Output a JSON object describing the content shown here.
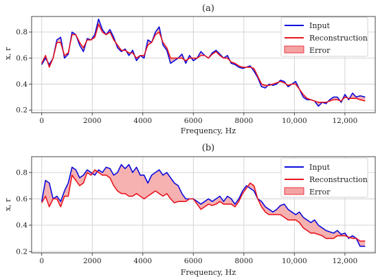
{
  "chart_data": [
    {
      "type": "line",
      "title": "(a)",
      "xlabel": "Frequency, Hz",
      "ylabel": "x, r",
      "xlim": [
        -400,
        13200
      ],
      "ylim": [
        0.18,
        0.92
      ],
      "xticks": [
        0,
        2000,
        4000,
        6000,
        8000,
        10000,
        12000
      ],
      "xtick_labels": [
        "0",
        "2000",
        "4000",
        "6000",
        "8000",
        "10,000",
        "12,000"
      ],
      "yticks": [
        0.2,
        0.4,
        0.6,
        0.8
      ],
      "ytick_labels": [
        "0.2",
        "0.4",
        "0.6",
        "0.8"
      ],
      "grid": true,
      "legend_position": "top-right",
      "legend": [
        "Input",
        "Reconstruction",
        "Error"
      ],
      "colors": {
        "input": "#0a0adc",
        "reconstruction": "#e8141e",
        "error_fill": "#f4a3a3"
      },
      "x": [
        0,
        150,
        300,
        450,
        600,
        750,
        900,
        1050,
        1200,
        1350,
        1500,
        1650,
        1800,
        1950,
        2100,
        2250,
        2400,
        2550,
        2700,
        2850,
        3000,
        3150,
        3300,
        3450,
        3600,
        3750,
        3900,
        4050,
        4200,
        4350,
        4500,
        4650,
        4800,
        4950,
        5100,
        5250,
        5400,
        5550,
        5700,
        5850,
        6000,
        6150,
        6300,
        6450,
        6600,
        6750,
        6900,
        7050,
        7200,
        7350,
        7500,
        7650,
        7800,
        7950,
        8100,
        8250,
        8400,
        8550,
        8700,
        8850,
        9000,
        9150,
        9300,
        9450,
        9600,
        9750,
        9900,
        10050,
        10200,
        10350,
        10500,
        10650,
        10800,
        10950,
        11100,
        11250,
        11400,
        11550,
        11700,
        11850,
        12000,
        12150,
        12300,
        12450,
        12600,
        12800
      ],
      "series": [
        {
          "name": "Input",
          "values": [
            0.55,
            0.6,
            0.55,
            0.6,
            0.74,
            0.76,
            0.6,
            0.63,
            0.8,
            0.78,
            0.7,
            0.65,
            0.75,
            0.74,
            0.78,
            0.9,
            0.82,
            0.78,
            0.82,
            0.76,
            0.68,
            0.65,
            0.67,
            0.62,
            0.66,
            0.58,
            0.62,
            0.6,
            0.74,
            0.72,
            0.8,
            0.84,
            0.7,
            0.66,
            0.56,
            0.58,
            0.6,
            0.63,
            0.56,
            0.62,
            0.58,
            0.6,
            0.65,
            0.62,
            0.6,
            0.64,
            0.66,
            0.63,
            0.6,
            0.62,
            0.56,
            0.55,
            0.53,
            0.52,
            0.53,
            0.54,
            0.5,
            0.45,
            0.38,
            0.37,
            0.4,
            0.39,
            0.4,
            0.43,
            0.42,
            0.38,
            0.4,
            0.42,
            0.36,
            0.3,
            0.28,
            0.28,
            0.27,
            0.23,
            0.26,
            0.25,
            0.28,
            0.3,
            0.3,
            0.26,
            0.32,
            0.28,
            0.33,
            0.3,
            0.31,
            0.3
          ]
        },
        {
          "name": "Reconstruction",
          "values": [
            0.56,
            0.62,
            0.53,
            0.6,
            0.72,
            0.72,
            0.62,
            0.64,
            0.78,
            0.78,
            0.72,
            0.68,
            0.74,
            0.74,
            0.76,
            0.86,
            0.8,
            0.78,
            0.8,
            0.74,
            0.7,
            0.66,
            0.66,
            0.64,
            0.64,
            0.6,
            0.62,
            0.62,
            0.7,
            0.72,
            0.78,
            0.8,
            0.72,
            0.68,
            0.6,
            0.6,
            0.6,
            0.6,
            0.58,
            0.6,
            0.6,
            0.6,
            0.62,
            0.62,
            0.6,
            0.63,
            0.65,
            0.62,
            0.6,
            0.6,
            0.57,
            0.56,
            0.54,
            0.53,
            0.53,
            0.53,
            0.52,
            0.46,
            0.4,
            0.39,
            0.39,
            0.4,
            0.41,
            0.42,
            0.41,
            0.39,
            0.4,
            0.4,
            0.36,
            0.32,
            0.29,
            0.28,
            0.27,
            0.26,
            0.26,
            0.26,
            0.27,
            0.28,
            0.28,
            0.27,
            0.3,
            0.29,
            0.29,
            0.29,
            0.28,
            0.27
          ]
        }
      ]
    },
    {
      "type": "line",
      "title": "(b)",
      "xlabel": "Frequency, Hz",
      "ylabel": "x, r",
      "xlim": [
        -400,
        13200
      ],
      "ylim": [
        0.19,
        0.92
      ],
      "xticks": [
        0,
        2000,
        4000,
        6000,
        8000,
        10000,
        12000
      ],
      "xtick_labels": [
        "0",
        "2000",
        "4000",
        "6000",
        "8000",
        "10,000",
        "12,000"
      ],
      "yticks": [
        0.2,
        0.4,
        0.6,
        0.8
      ],
      "ytick_labels": [
        "0.2",
        "0.4",
        "0.6",
        "0.8"
      ],
      "grid": true,
      "legend_position": "top-right",
      "legend": [
        "Input",
        "Reconstruction",
        "Error"
      ],
      "colors": {
        "input": "#0a0adc",
        "reconstruction": "#e8141e",
        "error_fill": "#f4a3a3"
      },
      "x": [
        0,
        150,
        300,
        450,
        600,
        750,
        900,
        1050,
        1200,
        1350,
        1500,
        1650,
        1800,
        1950,
        2100,
        2250,
        2400,
        2550,
        2700,
        2850,
        3000,
        3150,
        3300,
        3450,
        3600,
        3750,
        3900,
        4050,
        4200,
        4350,
        4500,
        4650,
        4800,
        4950,
        5100,
        5250,
        5400,
        5550,
        5700,
        5850,
        6000,
        6150,
        6300,
        6450,
        6600,
        6750,
        6900,
        7050,
        7200,
        7350,
        7500,
        7650,
        7800,
        7950,
        8100,
        8250,
        8400,
        8550,
        8700,
        8850,
        9000,
        9150,
        9300,
        9450,
        9600,
        9750,
        9900,
        10050,
        10200,
        10350,
        10500,
        10650,
        10800,
        10950,
        11100,
        11250,
        11400,
        11550,
        11700,
        11850,
        12000,
        12150,
        12300,
        12450,
        12600,
        12800
      ],
      "series": [
        {
          "name": "Input",
          "values": [
            0.58,
            0.74,
            0.72,
            0.6,
            0.62,
            0.58,
            0.66,
            0.72,
            0.84,
            0.82,
            0.76,
            0.78,
            0.82,
            0.8,
            0.78,
            0.82,
            0.8,
            0.84,
            0.83,
            0.78,
            0.8,
            0.86,
            0.83,
            0.86,
            0.8,
            0.84,
            0.78,
            0.78,
            0.72,
            0.78,
            0.8,
            0.82,
            0.78,
            0.8,
            0.76,
            0.72,
            0.7,
            0.64,
            0.6,
            0.6,
            0.6,
            0.58,
            0.56,
            0.58,
            0.6,
            0.58,
            0.6,
            0.62,
            0.58,
            0.62,
            0.6,
            0.56,
            0.6,
            0.66,
            0.7,
            0.68,
            0.66,
            0.6,
            0.58,
            0.54,
            0.52,
            0.5,
            0.52,
            0.55,
            0.56,
            0.52,
            0.5,
            0.48,
            0.5,
            0.46,
            0.44,
            0.42,
            0.44,
            0.4,
            0.38,
            0.36,
            0.35,
            0.34,
            0.36,
            0.33,
            0.34,
            0.3,
            0.32,
            0.3,
            0.24,
            0.24
          ]
        },
        {
          "name": "Reconstruction",
          "values": [
            0.57,
            0.62,
            0.54,
            0.6,
            0.6,
            0.54,
            0.62,
            0.62,
            0.78,
            0.74,
            0.7,
            0.72,
            0.8,
            0.78,
            0.82,
            0.8,
            0.78,
            0.78,
            0.76,
            0.7,
            0.66,
            0.64,
            0.64,
            0.62,
            0.62,
            0.64,
            0.62,
            0.6,
            0.62,
            0.64,
            0.66,
            0.64,
            0.62,
            0.64,
            0.6,
            0.57,
            0.58,
            0.58,
            0.58,
            0.6,
            0.6,
            0.56,
            0.52,
            0.54,
            0.56,
            0.55,
            0.56,
            0.58,
            0.56,
            0.56,
            0.56,
            0.54,
            0.58,
            0.64,
            0.68,
            0.72,
            0.7,
            0.6,
            0.54,
            0.5,
            0.48,
            0.48,
            0.48,
            0.48,
            0.46,
            0.44,
            0.44,
            0.44,
            0.42,
            0.38,
            0.36,
            0.34,
            0.34,
            0.33,
            0.32,
            0.3,
            0.3,
            0.3,
            0.32,
            0.32,
            0.32,
            0.31,
            0.3,
            0.3,
            0.28,
            0.28
          ]
        }
      ]
    }
  ]
}
